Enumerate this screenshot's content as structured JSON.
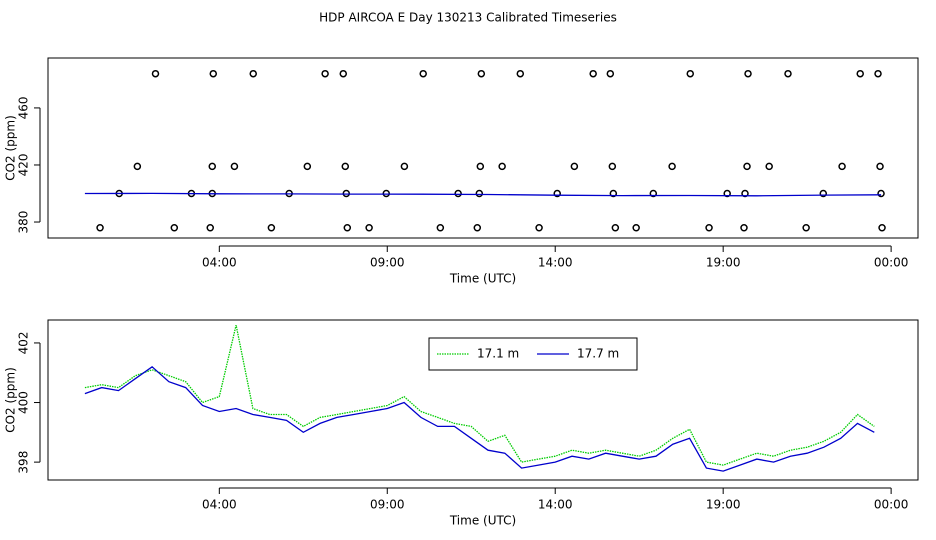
{
  "chart_data": [
    {
      "type": "scatter",
      "title": "HDP AIRCOA E  Day 130213  Calibrated Timeseries",
      "x_label": "Time (UTC)",
      "y_label": "CO2 (ppm)",
      "xlim": [
        -1.1,
        24.8
      ],
      "ylim": [
        368.8,
        495
      ],
      "xticks": [
        {
          "value": 4,
          "label": "04:00"
        },
        {
          "value": 9,
          "label": "09:00"
        },
        {
          "value": 14,
          "label": "14:00"
        },
        {
          "value": 19,
          "label": "19:00"
        },
        {
          "value": 24,
          "label": "00:00"
        }
      ],
      "yticks": [
        380,
        420,
        460
      ],
      "series": [
        {
          "style": "points",
          "color": "#000000",
          "x": [
            2.1,
            3.82,
            5.01,
            7.15,
            7.69,
            10.07,
            11.8,
            12.96,
            15.13,
            15.64,
            18.02,
            19.74,
            20.93,
            23.08,
            23.61,
            1.56,
            3.79,
            4.45,
            6.62,
            7.75,
            9.51,
            11.77,
            12.42,
            14.57,
            15.7,
            17.48,
            19.71,
            20.37,
            22.54,
            23.67,
            1.02,
            3.17,
            3.79,
            6.08,
            7.78,
            8.97,
            11.11,
            11.74,
            14.06,
            15.73,
            16.92,
            19.12,
            19.65,
            21.98,
            23.7,
            0.45,
            2.66,
            3.73,
            5.55,
            7.81,
            8.46,
            10.58,
            11.68,
            13.52,
            15.79,
            16.41,
            18.58,
            19.62,
            21.47,
            23.73
          ],
          "values": [
            484,
            484,
            484,
            484,
            484,
            484,
            484,
            484,
            484,
            484,
            484,
            484,
            484,
            484,
            484,
            419,
            419,
            419,
            419,
            419,
            419,
            419,
            419,
            419,
            419,
            419,
            419,
            419,
            419,
            419,
            400,
            400,
            400,
            400,
            400,
            400,
            400,
            400,
            400,
            400,
            400,
            400,
            400,
            400,
            400,
            376,
            376,
            376,
            376,
            376,
            376,
            376,
            376,
            376,
            376,
            376,
            376,
            376,
            376,
            376
          ]
        },
        {
          "style": "line",
          "color": "#0000cc",
          "x": [
            0,
            2,
            4,
            6,
            8,
            10,
            12,
            14,
            16,
            18,
            20,
            22,
            23.7
          ],
          "values": [
            400,
            400.1,
            399.8,
            399.7,
            399.6,
            399.5,
            399.3,
            398.8,
            398.5,
            398.6,
            398.4,
            398.9,
            399.1
          ]
        }
      ]
    },
    {
      "type": "line",
      "x_label": "Time (UTC)",
      "y_label": "CO2 (ppm)",
      "xlim": [
        -1.1,
        24.8
      ],
      "ylim": [
        397.4,
        402.77
      ],
      "xticks": [
        {
          "value": 4,
          "label": "04:00"
        },
        {
          "value": 9,
          "label": "09:00"
        },
        {
          "value": 14,
          "label": "14:00"
        },
        {
          "value": 19,
          "label": "19:00"
        },
        {
          "value": 24,
          "label": "00:00"
        }
      ],
      "yticks": [
        398,
        400,
        402
      ],
      "legend": "top",
      "x": [
        0,
        0.5,
        1,
        1.5,
        2,
        2.5,
        3,
        3.5,
        4,
        4.5,
        5,
        5.5,
        6,
        6.5,
        7,
        7.5,
        8,
        8.5,
        9,
        9.5,
        10,
        10.5,
        11,
        11.5,
        12,
        12.5,
        13,
        13.5,
        14,
        14.5,
        15,
        15.5,
        16,
        16.5,
        17,
        17.5,
        18,
        18.5,
        19,
        19.5,
        20,
        20.5,
        21,
        21.5,
        22,
        22.5,
        23,
        23.5
      ],
      "series": [
        {
          "name": "17.1 m",
          "color": "#00cc00",
          "dotted": true,
          "values": [
            400.5,
            400.6,
            400.5,
            400.9,
            401.1,
            400.9,
            400.7,
            400.0,
            400.2,
            402.6,
            399.8,
            399.6,
            399.6,
            399.2,
            399.5,
            399.6,
            399.7,
            399.8,
            399.9,
            400.2,
            399.7,
            399.5,
            399.3,
            399.2,
            398.7,
            398.9,
            398.0,
            398.1,
            398.2,
            398.4,
            398.3,
            398.4,
            398.3,
            398.2,
            398.4,
            398.8,
            399.1,
            398.0,
            397.9,
            398.1,
            398.3,
            398.2,
            398.4,
            398.5,
            398.7,
            399.0,
            399.6,
            399.2
          ]
        },
        {
          "name": "17.7 m",
          "color": "#0000cc",
          "dotted": false,
          "values": [
            400.3,
            400.5,
            400.4,
            400.8,
            401.2,
            400.7,
            400.5,
            399.9,
            399.7,
            399.8,
            399.6,
            399.5,
            399.4,
            399.0,
            399.3,
            399.5,
            399.6,
            399.7,
            399.8,
            400.0,
            399.5,
            399.2,
            399.2,
            398.8,
            398.4,
            398.3,
            397.8,
            397.9,
            398.0,
            398.2,
            398.1,
            398.3,
            398.2,
            398.1,
            398.2,
            398.6,
            398.8,
            397.8,
            397.7,
            397.9,
            398.1,
            398.0,
            398.2,
            398.3,
            398.5,
            398.8,
            399.3,
            399.0
          ]
        }
      ]
    }
  ]
}
